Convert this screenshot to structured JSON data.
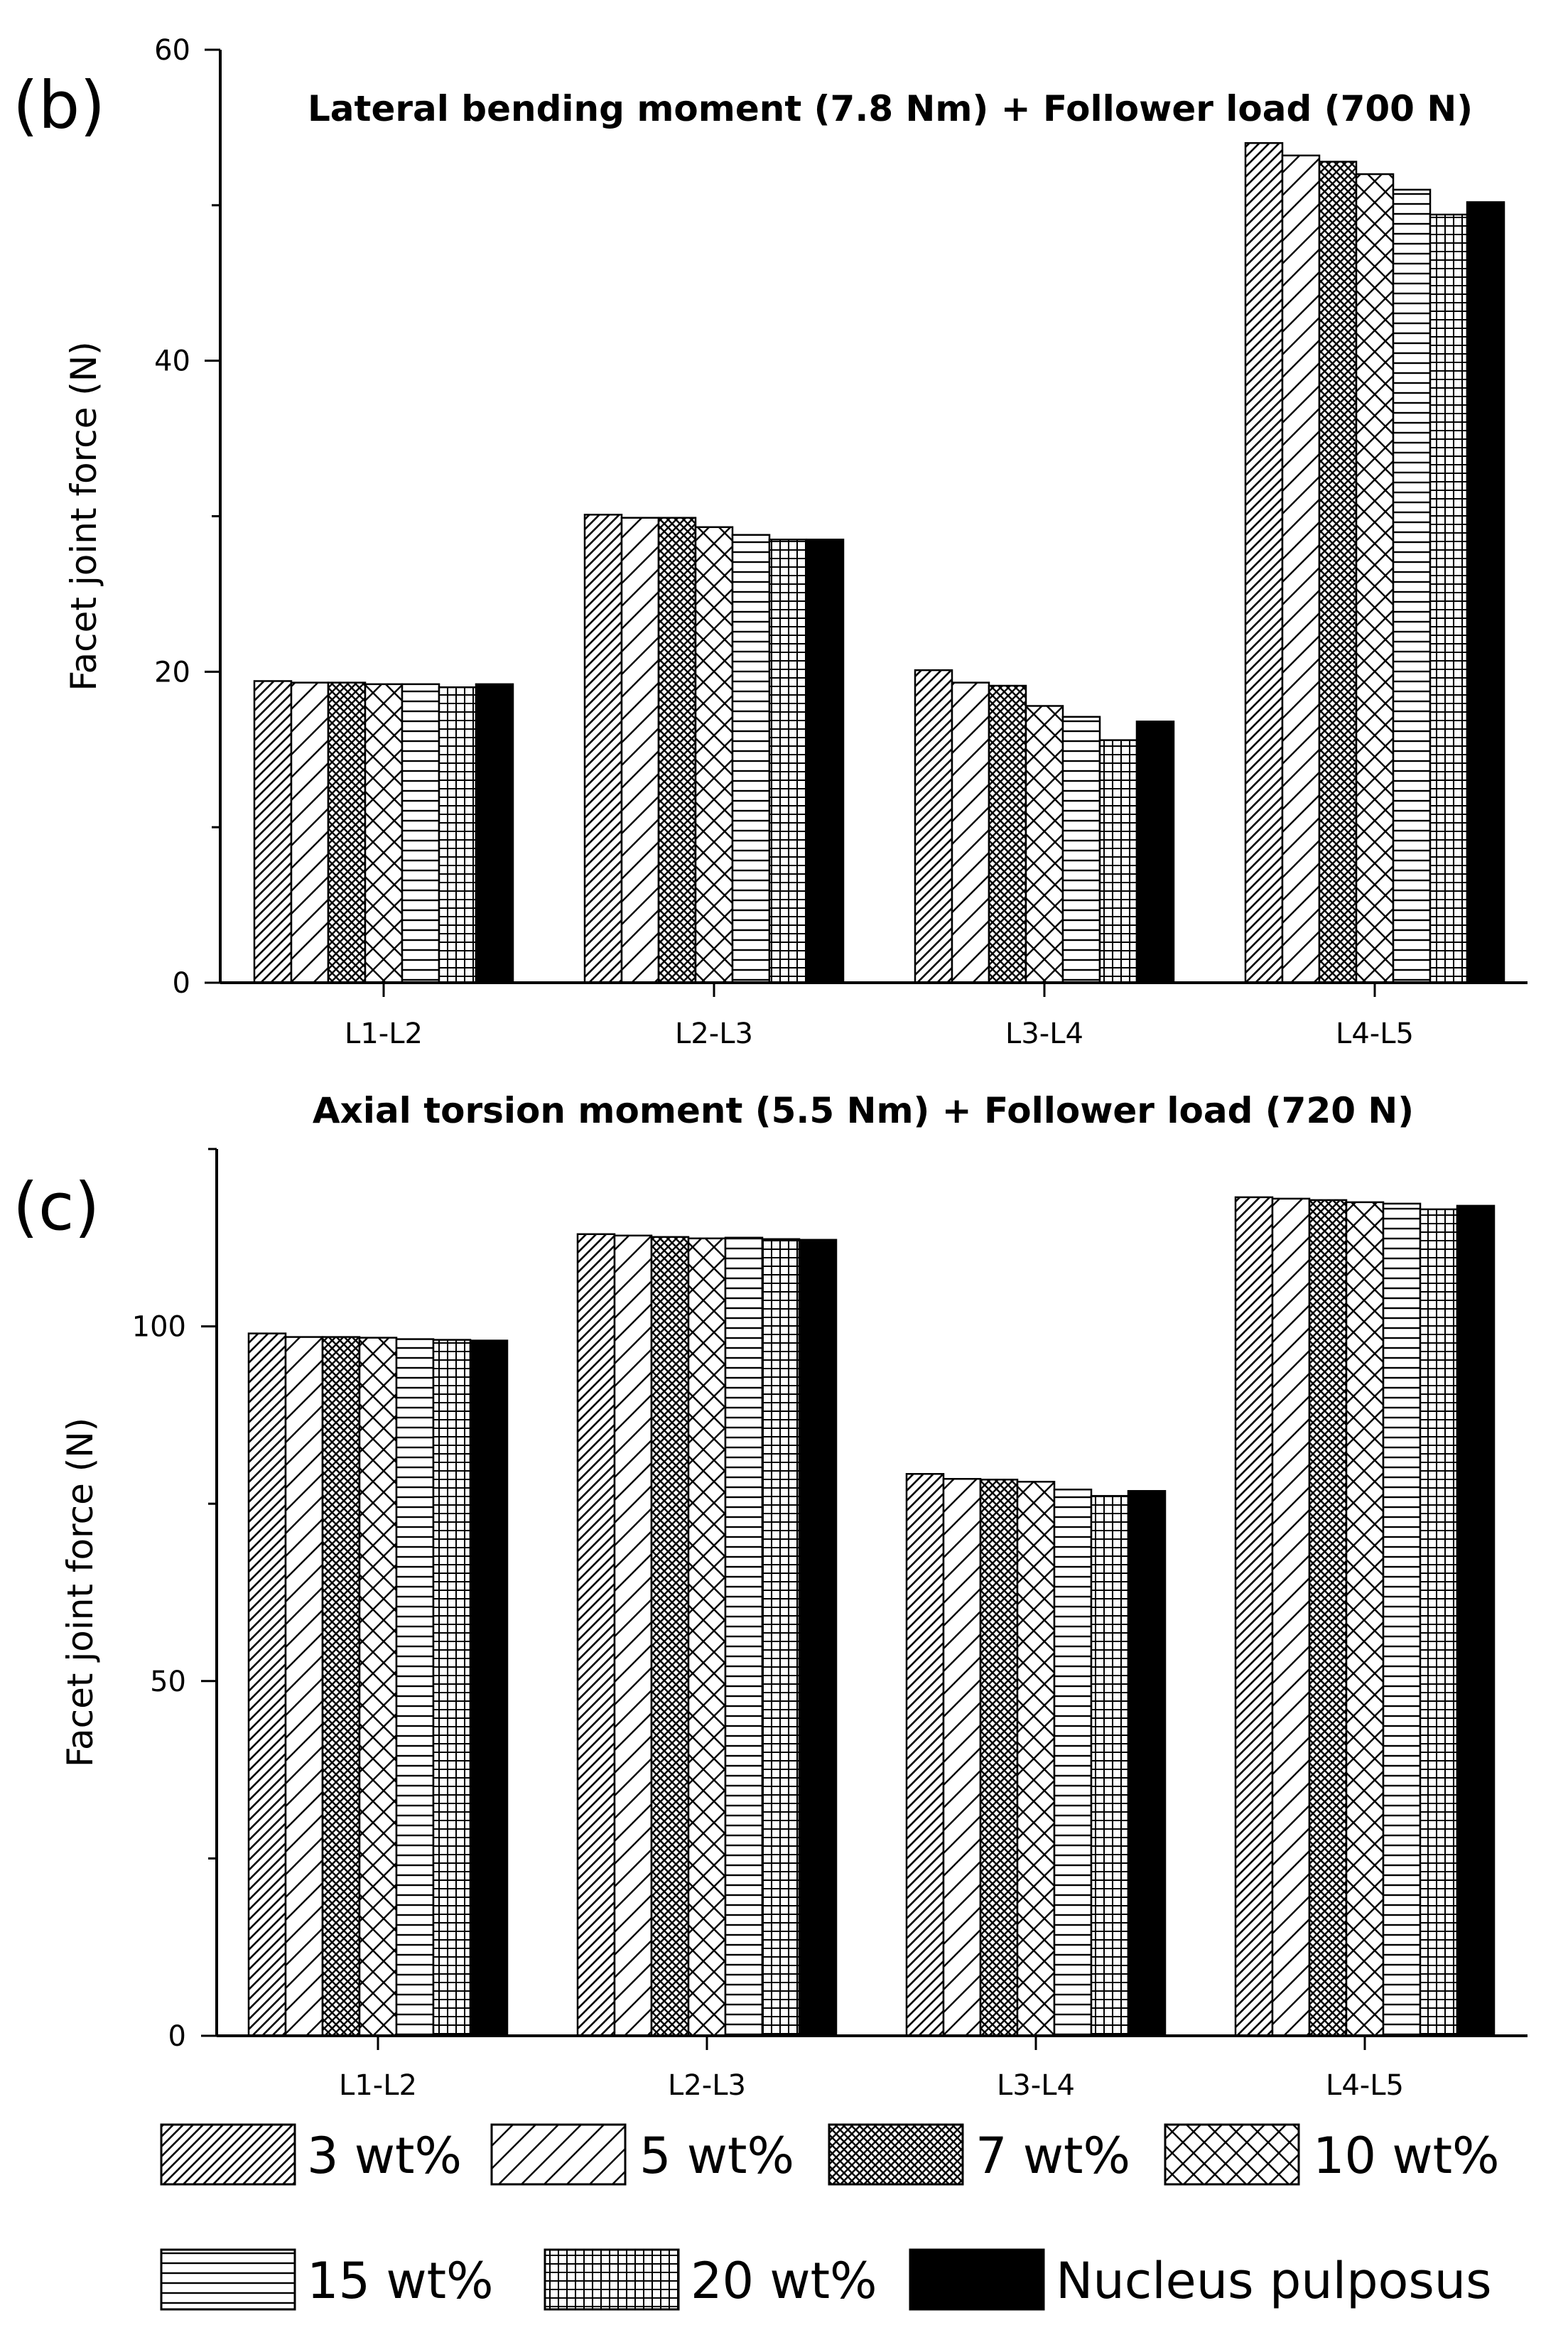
{
  "colors": {
    "ink": "#000000",
    "background": "#ffffff"
  },
  "chart_data": [
    {
      "type": "bar",
      "panel_label": "(b)",
      "title": "Lateral bending moment (7.8 Nm) + Follower load (700 N)",
      "xlabel": "",
      "ylabel": "Facet joint force (N)",
      "ylim": [
        0,
        60
      ],
      "yticks": [
        0,
        20,
        40,
        60
      ],
      "categories": [
        "L1-L2",
        "L2-L3",
        "L3-L4",
        "L4-L5"
      ],
      "series": [
        {
          "name": "3 wt%",
          "pattern": "dense-diagonal",
          "values": [
            19.4,
            30.1,
            20.1,
            54.0
          ]
        },
        {
          "name": "5 wt%",
          "pattern": "sparse-diagonal",
          "values": [
            19.3,
            29.9,
            19.3,
            53.2
          ]
        },
        {
          "name": "7 wt%",
          "pattern": "crosshatch-dense",
          "values": [
            19.3,
            29.9,
            19.1,
            52.8
          ]
        },
        {
          "name": "10 wt%",
          "pattern": "crosshatch-sparse",
          "values": [
            19.2,
            29.3,
            17.8,
            52.0
          ]
        },
        {
          "name": "15 wt%",
          "pattern": "horizontal",
          "values": [
            19.2,
            28.8,
            17.1,
            51.0
          ]
        },
        {
          "name": "20 wt%",
          "pattern": "grid",
          "values": [
            19.0,
            28.5,
            15.6,
            49.4
          ]
        },
        {
          "name": "Nucleus pulposus",
          "pattern": "solid",
          "values": [
            19.2,
            28.5,
            16.8,
            50.2
          ]
        }
      ]
    },
    {
      "type": "bar",
      "panel_label": "(c)",
      "title": "Axial torsion moment (5.5 Nm) + Follower load (720 N)",
      "xlabel": "",
      "ylabel": "Facet joint force (N)",
      "ylim": [
        0,
        125
      ],
      "yticks": [
        0,
        50,
        100
      ],
      "categories": [
        "L1-L2",
        "L2-L3",
        "L3-L4",
        "L4-L5"
      ],
      "series": [
        {
          "name": "3 wt%",
          "pattern": "dense-diagonal",
          "values": [
            99.0,
            113.0,
            79.2,
            118.2
          ]
        },
        {
          "name": "5 wt%",
          "pattern": "sparse-diagonal",
          "values": [
            98.5,
            112.8,
            78.5,
            118.0
          ]
        },
        {
          "name": "7 wt%",
          "pattern": "crosshatch-dense",
          "values": [
            98.5,
            112.6,
            78.4,
            117.8
          ]
        },
        {
          "name": "10 wt%",
          "pattern": "crosshatch-sparse",
          "values": [
            98.4,
            112.4,
            78.1,
            117.5
          ]
        },
        {
          "name": "15 wt%",
          "pattern": "horizontal",
          "values": [
            98.2,
            112.5,
            77.0,
            117.3
          ]
        },
        {
          "name": "20 wt%",
          "pattern": "grid",
          "values": [
            98.1,
            112.3,
            76.1,
            116.5
          ]
        },
        {
          "name": "Nucleus pulposus",
          "pattern": "solid",
          "values": [
            98.0,
            112.2,
            76.8,
            117.0
          ]
        }
      ]
    }
  ]
}
